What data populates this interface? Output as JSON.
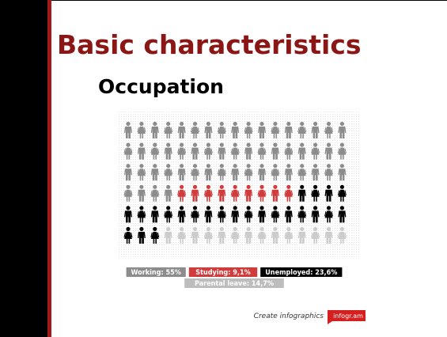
{
  "header": {
    "title": "Basic characteristics",
    "subtitle": "Occupation"
  },
  "chart_data": {
    "type": "pictogram",
    "series": [
      {
        "name": "Working",
        "label": "Working: 55%",
        "value": 55,
        "color": "#8c8c8c"
      },
      {
        "name": "Studying",
        "label": "Studying: 9,1%",
        "value": 9.1,
        "color": "#d13b3b"
      },
      {
        "name": "Unemployed",
        "label": "Unemployed: 23,6%",
        "value": 23.6,
        "color": "#000000"
      },
      {
        "name": "Parental leave",
        "label": "Parental leave: 14,7%",
        "value": 14.7,
        "color": "#cccccc"
      }
    ]
  },
  "footer": {
    "text": "Create infographics",
    "brand": "infogr.am"
  }
}
